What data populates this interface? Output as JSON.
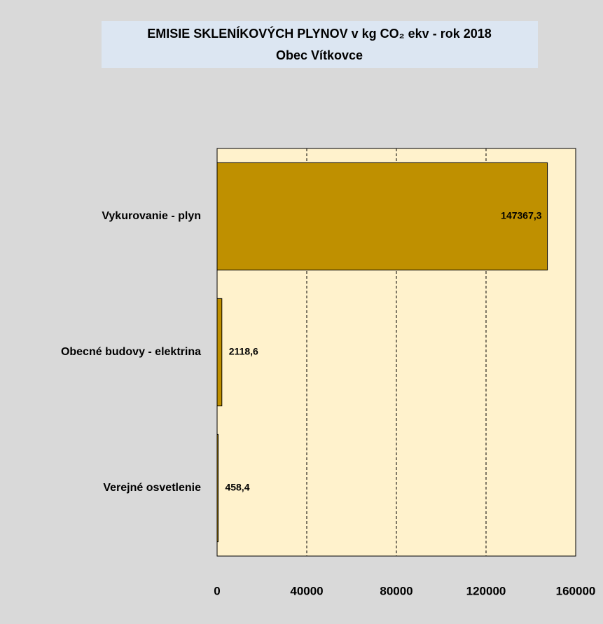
{
  "chart_data": {
    "type": "bar",
    "orientation": "horizontal",
    "title": "EMISIE SKLENÍKOVÝCH PLYNOV v kg CO₂ ekv - rok 2018",
    "subtitle": "Obec Vítkovce",
    "categories": [
      "Vykurovanie - plyn",
      "Obecné budovy - elektrina",
      "Verejné osvetlenie"
    ],
    "values": [
      147367.3,
      2118.6,
      458.4
    ],
    "value_labels": [
      "147367,3",
      "2118,6",
      "458,4"
    ],
    "color": "#bf9000",
    "xlim": [
      0,
      160000
    ],
    "xticks": [
      0,
      40000,
      80000,
      120000,
      160000
    ],
    "grid": true
  }
}
